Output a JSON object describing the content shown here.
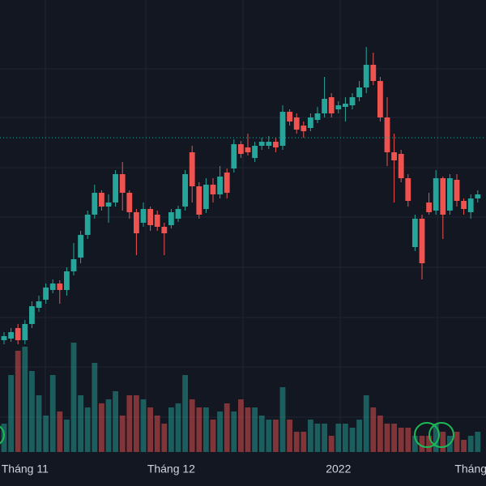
{
  "chart_data": {
    "type": "candlestick",
    "categories": [
      null,
      null,
      null,
      "Tháng 11",
      null,
      null,
      null,
      null,
      null,
      null,
      null,
      null,
      null,
      null,
      null,
      null,
      null,
      null,
      null,
      null,
      null,
      null,
      null,
      null,
      "Tháng 12",
      null,
      null,
      null,
      null,
      null,
      null,
      null,
      null,
      null,
      null,
      null,
      null,
      null,
      null,
      null,
      null,
      null,
      null,
      null,
      null,
      null,
      null,
      null,
      "2022",
      null,
      null,
      null,
      null,
      null,
      null,
      null,
      null,
      null,
      null,
      null,
      null,
      null,
      null,
      null,
      null,
      null,
      null,
      "Tháng",
      null
    ],
    "open": [
      30,
      32,
      45,
      30,
      50,
      70,
      80,
      92,
      100,
      92,
      115,
      132,
      160,
      185,
      212,
      195,
      200,
      235,
      212,
      188,
      175,
      192,
      185,
      170,
      172,
      180,
      195,
      262,
      220,
      192,
      222,
      210,
      237,
      242,
      272,
      268,
      255,
      270,
      270,
      275,
      270,
      312,
      305,
      295,
      292,
      302,
      310,
      330,
      315,
      318,
      320,
      330,
      342,
      370,
      350,
      305,
      262,
      260,
      230,
      145,
      180,
      200,
      190,
      230,
      190,
      228,
      202,
      188,
      205
    ],
    "high": [
      40,
      45,
      50,
      55,
      78,
      85,
      100,
      105,
      104,
      120,
      150,
      165,
      190,
      222,
      215,
      210,
      240,
      250,
      215,
      192,
      200,
      195,
      190,
      175,
      192,
      196,
      240,
      270,
      225,
      230,
      230,
      245,
      242,
      278,
      276,
      285,
      275,
      280,
      282,
      280,
      320,
      315,
      310,
      300,
      310,
      318,
      355,
      335,
      325,
      330,
      335,
      350,
      392,
      385,
      355,
      330,
      285,
      265,
      235,
      185,
      185,
      212,
      240,
      232,
      235,
      235,
      205,
      210,
      215
    ],
    "low": [
      25,
      28,
      25,
      25,
      45,
      65,
      75,
      88,
      75,
      85,
      110,
      125,
      155,
      180,
      190,
      175,
      195,
      190,
      180,
      135,
      170,
      165,
      165,
      135,
      168,
      176,
      190,
      200,
      180,
      187,
      200,
      205,
      205,
      237,
      255,
      258,
      250,
      265,
      266,
      262,
      265,
      295,
      285,
      280,
      288,
      298,
      305,
      305,
      310,
      300,
      315,
      325,
      335,
      345,
      300,
      245,
      200,
      225,
      195,
      140,
      105,
      185,
      185,
      155,
      185,
      195,
      185,
      180,
      200
    ],
    "close": [
      35,
      40,
      30,
      50,
      72,
      78,
      95,
      100,
      92,
      115,
      130,
      160,
      185,
      212,
      195,
      200,
      235,
      212,
      188,
      162,
      192,
      172,
      170,
      162,
      188,
      192,
      235,
      220,
      185,
      222,
      210,
      232,
      212,
      272,
      260,
      262,
      270,
      275,
      275,
      268,
      312,
      300,
      290,
      288,
      305,
      310,
      328,
      310,
      320,
      322,
      330,
      342,
      370,
      350,
      305,
      262,
      252,
      230,
      202,
      180,
      125,
      188,
      230,
      185,
      230,
      202,
      192,
      205,
      210
    ],
    "volume": [
      35,
      95,
      125,
      130,
      100,
      70,
      45,
      95,
      50,
      40,
      135,
      70,
      55,
      110,
      60,
      65,
      75,
      45,
      70,
      70,
      65,
      55,
      45,
      35,
      55,
      60,
      95,
      65,
      55,
      55,
      40,
      50,
      60,
      50,
      65,
      55,
      55,
      45,
      40,
      40,
      80,
      40,
      25,
      25,
      40,
      35,
      35,
      20,
      35,
      35,
      30,
      40,
      70,
      55,
      45,
      35,
      35,
      30,
      30,
      20,
      20,
      20,
      35,
      25,
      20,
      25,
      15,
      20,
      25
    ],
    "up_color": "#26a69a",
    "down_color": "#ef5350",
    "ylim": [
      0,
      450
    ],
    "volume_lim": [
      0,
      150
    ],
    "price_line": 280,
    "grid": true
  }
}
